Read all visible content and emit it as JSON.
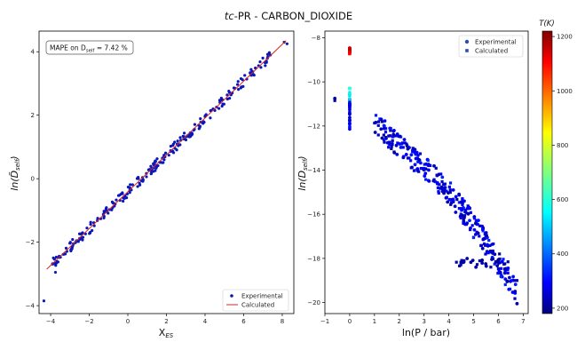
{
  "figure": {
    "title_italic": "tc",
    "title_rest": "-PR - CARBON_DIOXIDE"
  },
  "chart_data": [
    {
      "type": "scatter",
      "xlabel": "X",
      "xlabel_sub": "ES",
      "ylabel": "ln(D̃",
      "ylabel_sub": "self",
      "ylabel_close": ")",
      "xlim": [
        -4.6,
        8.6
      ],
      "ylim": [
        -4.25,
        4.65
      ],
      "xticks": [
        -4,
        -2,
        0,
        2,
        4,
        6,
        8
      ],
      "yticks": [
        -4,
        -2,
        0,
        2,
        4
      ],
      "grid": false,
      "annotation": "MAPE on D",
      "annotation_sub": "self",
      "annotation_value": " = 7.42 %",
      "legend": {
        "position": "bottom-right",
        "entries": [
          "Experimental",
          "Calculated"
        ]
      },
      "series": [
        {
          "name": "Experimental",
          "kind": "scatter",
          "color": "#0a17b8"
        },
        {
          "name": "Calculated",
          "kind": "line",
          "color": "#d62728",
          "x": [
            -4.2,
            8.2
          ],
          "y": [
            -2.85,
            4.35
          ]
        }
      ]
    },
    {
      "type": "scatter",
      "xlabel": "ln(P / bar)",
      "ylabel": "ln(D",
      "ylabel_sub": "self",
      "ylabel_close": ")",
      "xlim": [
        -1.0,
        7.2
      ],
      "ylim": [
        -20.5,
        -7.7
      ],
      "xticks": [
        -1,
        0,
        1,
        2,
        3,
        4,
        5,
        6,
        7
      ],
      "yticks": [
        -20,
        -18,
        -16,
        -14,
        -12,
        -10,
        -8
      ],
      "grid": false,
      "legend": {
        "position": "top-right",
        "entries": [
          "Experimental",
          "Calculated"
        ]
      },
      "colorbar": {
        "label": "T(K)",
        "min": 180,
        "max": 1220,
        "ticks": [
          200,
          400,
          600,
          800,
          1000,
          1200
        ]
      }
    }
  ]
}
